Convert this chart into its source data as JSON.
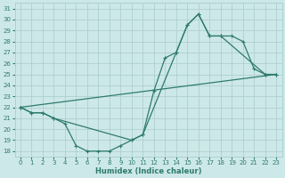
{
  "xlabel": "Humidex (Indice chaleur)",
  "bg_color": "#cde8e8",
  "line_color": "#2e7b6e",
  "grid_color": "#aed0cf",
  "xlim": [
    -0.5,
    23.5
  ],
  "ylim": [
    17.5,
    31.5
  ],
  "xticks": [
    0,
    1,
    2,
    3,
    4,
    5,
    6,
    7,
    8,
    9,
    10,
    11,
    12,
    13,
    14,
    15,
    16,
    17,
    18,
    19,
    20,
    21,
    22,
    23
  ],
  "yticks": [
    18,
    19,
    20,
    21,
    22,
    23,
    24,
    25,
    26,
    27,
    28,
    29,
    30,
    31
  ],
  "line1_x": [
    0,
    1,
    2,
    3,
    4,
    5,
    6,
    7,
    8,
    9,
    10,
    11,
    12,
    13,
    14,
    15,
    16,
    17,
    18,
    19,
    20,
    21,
    22,
    23
  ],
  "line1_y": [
    22.0,
    21.5,
    21.5,
    21.0,
    20.5,
    18.5,
    18.0,
    18.0,
    18.0,
    18.5,
    19.0,
    19.5,
    23.5,
    26.5,
    27.0,
    29.5,
    30.5,
    28.5,
    28.5,
    28.5,
    28.0,
    25.5,
    25.0,
    25.0
  ],
  "line2_x": [
    0,
    23
  ],
  "line2_y": [
    22.0,
    25.0
  ],
  "line3_x": [
    0,
    1,
    2,
    3,
    10,
    11,
    14,
    15,
    16,
    17,
    18,
    22,
    23
  ],
  "line3_y": [
    22.0,
    21.5,
    21.5,
    21.0,
    19.0,
    19.5,
    27.0,
    29.5,
    30.5,
    28.5,
    28.5,
    25.0,
    25.0
  ]
}
